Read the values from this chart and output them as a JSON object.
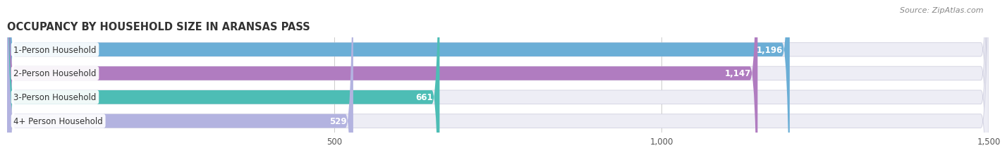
{
  "title": "OCCUPANCY BY HOUSEHOLD SIZE IN ARANSAS PASS",
  "source": "Source: ZipAtlas.com",
  "categories": [
    "1-Person Household",
    "2-Person Household",
    "3-Person Household",
    "4+ Person Household"
  ],
  "values": [
    1196,
    1147,
    661,
    529
  ],
  "colors": [
    "#6baed6",
    "#b07cc0",
    "#4dbdb5",
    "#b3b3e0"
  ],
  "bar_bg_color": "#ededf5",
  "xlim_max": 1500,
  "xticks": [
    500,
    1000,
    1500
  ],
  "bar_height": 0.58,
  "title_fontsize": 10.5,
  "label_fontsize": 8.5,
  "value_fontsize": 8.5,
  "source_fontsize": 8
}
